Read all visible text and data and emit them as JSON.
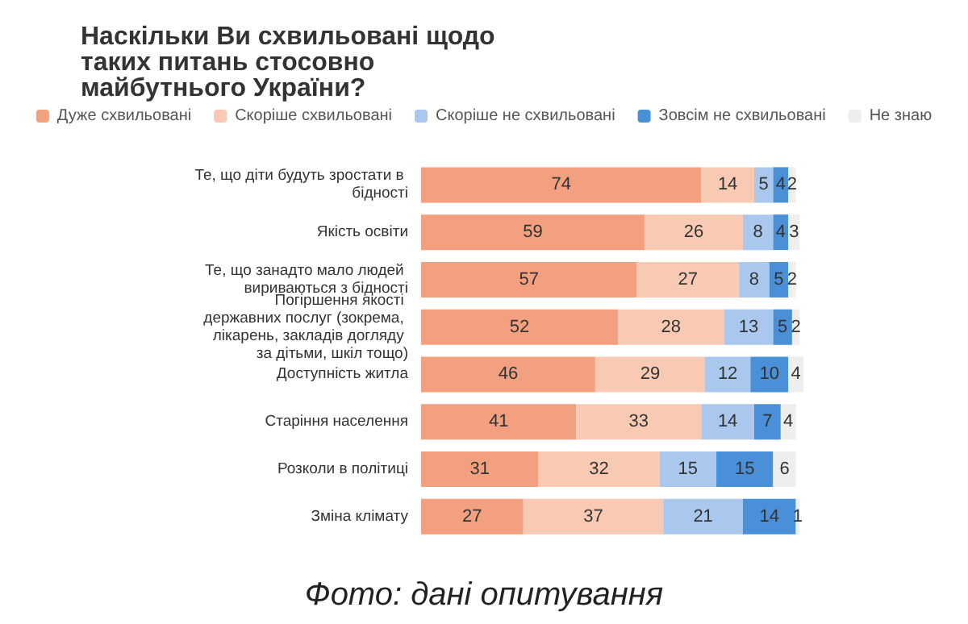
{
  "chart_data": {
    "type": "bar",
    "orientation": "horizontal",
    "stacked": true,
    "title": "Наскільки Ви схвильовані щодо таких питань стосовно майбутнього України?",
    "categories": [
      "Те, що діти будуть зростати в бідності",
      "Якість освіти",
      "Те, що занадто мало людей вириваються з бідності",
      "Погіршення якості державних послуг (зокрема, лікарень, закладів догляду за дітьми, шкіл тощо)",
      "Доступність житла",
      "Старіння населення",
      "Розколи в політиці",
      "Зміна клімату"
    ],
    "series": [
      {
        "name": "Дуже схвильовані",
        "color": "#f2a07f",
        "values": [
          74,
          59,
          57,
          52,
          46,
          41,
          31,
          27
        ]
      },
      {
        "name": "Скоріше схвильовані",
        "color": "#f8cab4",
        "values": [
          14,
          26,
          27,
          28,
          29,
          33,
          32,
          37
        ]
      },
      {
        "name": "Скоріше не схвильовані",
        "color": "#aac8ee",
        "values": [
          5,
          8,
          8,
          13,
          12,
          14,
          15,
          21
        ]
      },
      {
        "name": "Зовсім не схвильовані",
        "color": "#4a90d9",
        "values": [
          4,
          4,
          5,
          5,
          10,
          7,
          15,
          14
        ]
      },
      {
        "name": "Не знаю",
        "color": "#eeeeee",
        "values": [
          2,
          3,
          2,
          2,
          4,
          4,
          6,
          1
        ]
      }
    ],
    "xlim": [
      0,
      101
    ],
    "data_labels": true,
    "legend": "top",
    "tick_labels": "y",
    "annotations": [
      "Фото: дані опитування"
    ]
  }
}
